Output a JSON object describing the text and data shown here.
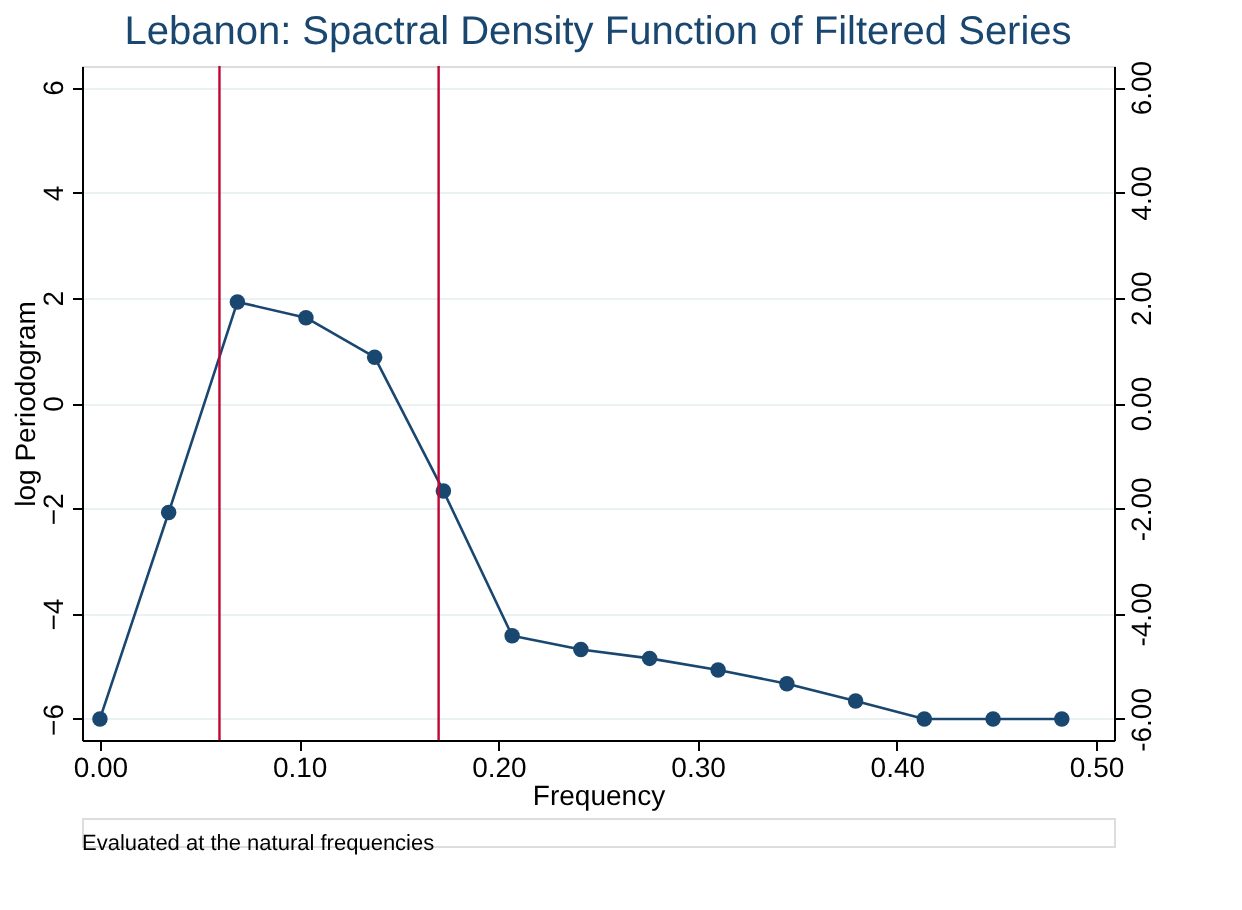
{
  "chart_data": {
    "type": "line",
    "title": "Lebanon: Spactral Density Function of Filtered Series",
    "xlabel": "Frequency",
    "ylabel": "log Periodogram",
    "x": [
      0.0,
      0.0345,
      0.069,
      0.1034,
      0.1379,
      0.1724,
      0.2069,
      0.2414,
      0.2759,
      0.3103,
      0.3448,
      0.3793,
      0.4138,
      0.4483,
      0.4828
    ],
    "series": [
      {
        "color": "#1a476f",
        "values": [
          -6.0,
          -2.08,
          1.92,
          1.62,
          0.87,
          -1.67,
          -4.42,
          -4.68,
          -4.85,
          -5.07,
          -5.33,
          -5.66,
          -6.0,
          -6.0,
          -6.0
        ]
      }
    ],
    "xlim": [
      -0.009,
      0.509
    ],
    "xticks": [
      {
        "value": 0,
        "label": "0.00"
      },
      {
        "value": 0.1,
        "label": "0.10"
      },
      {
        "value": 0.2,
        "label": "0.20"
      },
      {
        "value": 0.3,
        "label": "0.30"
      },
      {
        "value": 0.4,
        "label": "0.40"
      },
      {
        "value": 0.5,
        "label": "0.50"
      }
    ],
    "ylim": [
      -6.4,
      6.4
    ],
    "yticks": [
      -6,
      -4,
      -2,
      0,
      2,
      4,
      6
    ],
    "y2lim": [
      -6.4,
      6.4
    ],
    "y2ticks": [
      {
        "value": -6,
        "label": "-6.00"
      },
      {
        "value": -4,
        "label": "-4.00"
      },
      {
        "value": -2,
        "label": "-2.00"
      },
      {
        "value": 0,
        "label": "0.00"
      },
      {
        "value": 2,
        "label": "2.00"
      },
      {
        "value": 4,
        "label": "4.00"
      },
      {
        "value": 6,
        "label": "6.00"
      }
    ],
    "ref_lines": [
      {
        "axis": "x",
        "value": 0.06,
        "color": "#c10534"
      },
      {
        "axis": "x",
        "value": 0.17,
        "color": "#c10534"
      }
    ],
    "annotations": [
      "Evaluated at the natural frequencies"
    ],
    "grid": "y",
    "marker": "circle",
    "line_style": "solid"
  }
}
